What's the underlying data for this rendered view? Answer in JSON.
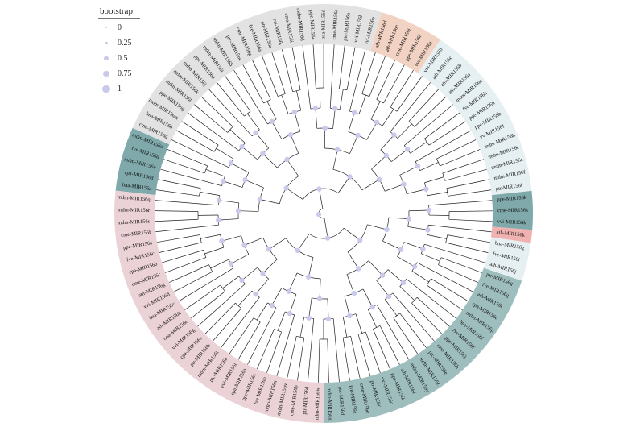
{
  "legend": {
    "title": "bootstrap",
    "items": [
      {
        "label": "0",
        "value": 0
      },
      {
        "label": "0.25",
        "value": 0.25
      },
      {
        "label": "0.5",
        "value": 0.5
      },
      {
        "label": "0.75",
        "value": 0.75
      },
      {
        "label": "1",
        "value": 1
      }
    ],
    "dot_color": "#c9c9ec"
  },
  "clade_colors": {
    "grey": "#e2e2e2",
    "orange": "#f1d2c3",
    "lightblue": "#e6eff1",
    "teal": "#7fa9ab",
    "red": "#f0b2b0",
    "darkteal": "#9ebdbd",
    "pink": "#ebd2d7"
  },
  "leaves": [
    {
      "label": "ptr-MIR156f",
      "clade": "lightblue"
    },
    {
      "label": "mdm-MIR156f",
      "clade": "lightblue"
    },
    {
      "label": "mdm-MIR156c",
      "clade": "lightblue"
    },
    {
      "label": "mdm-MIR156e",
      "clade": "lightblue"
    },
    {
      "label": "mdm-MIR156b",
      "clade": "lightblue"
    },
    {
      "label": "vv-MIR156f",
      "clade": "lightblue"
    },
    {
      "label": "ppe-MIR156b",
      "clade": "lightblue"
    },
    {
      "label": "ppe-MIR156h",
      "clade": "lightblue"
    },
    {
      "label": "fve-MIR156h",
      "clade": "lightblue"
    },
    {
      "label": "mdm-MIR156a",
      "clade": "lightblue"
    },
    {
      "label": "ath-MIR156a",
      "clade": "lightblue"
    },
    {
      "label": "ath-MIR156b",
      "clade": "lightblue"
    },
    {
      "label": "ath-MIR156c",
      "clade": "lightblue"
    },
    {
      "label": "vvi-MIR156b",
      "clade": "lightblue"
    },
    {
      "label": "vvi-MIR156a",
      "clade": "orange"
    },
    {
      "label": "ppe-MIR156f",
      "clade": "orange"
    },
    {
      "label": "cme-MIR156j",
      "clade": "orange"
    },
    {
      "label": "ath-MIR156e",
      "clade": "orange"
    },
    {
      "label": "ath-MIR156d",
      "clade": "orange"
    },
    {
      "label": "vvi-MIR156e",
      "clade": "grey"
    },
    {
      "label": "vvi-MIR156h",
      "clade": "grey"
    },
    {
      "label": "ptc-MIR156a",
      "clade": "grey"
    },
    {
      "label": "cme-MIR156a",
      "clade": "grey"
    },
    {
      "label": "bna-MIR156d",
      "clade": "grey"
    },
    {
      "label": "ppe-MIR156e",
      "clade": "grey"
    },
    {
      "label": "mdm-MIR156d",
      "clade": "grey"
    },
    {
      "label": "cme-MIR156i",
      "clade": "grey"
    },
    {
      "label": "vvi-MIR156j",
      "clade": "grey"
    },
    {
      "label": "ptr-MIR156e",
      "clade": "grey"
    },
    {
      "label": "fve-MIR156a",
      "clade": "grey"
    },
    {
      "label": "cme-MIR156g",
      "clade": "grey"
    },
    {
      "label": "ptc-MIR156c",
      "clade": "grey"
    },
    {
      "label": "mdm-MIR156h",
      "clade": "grey"
    },
    {
      "label": "mdm-MIR156i",
      "clade": "grey"
    },
    {
      "label": "ppe-MIR156d",
      "clade": "grey"
    },
    {
      "label": "mdm-MIR156j",
      "clade": "grey"
    },
    {
      "label": "mdm-MIR156k",
      "clade": "grey"
    },
    {
      "label": "mdm-MIR156l",
      "clade": "grey"
    },
    {
      "label": "ppe-MIR156g",
      "clade": "grey"
    },
    {
      "label": "mdm-MIR156m",
      "clade": "grey"
    },
    {
      "label": "bna-MIR156b",
      "clade": "grey"
    },
    {
      "label": "cme-MIR156d",
      "clade": "grey"
    },
    {
      "label": "mdm-MIR156o",
      "clade": "teal"
    },
    {
      "label": "fve-MIR156d",
      "clade": "teal"
    },
    {
      "label": "mdm-MIR156n",
      "clade": "teal"
    },
    {
      "label": "cpa-MIR156d",
      "clade": "teal"
    },
    {
      "label": "bna-MIR156a",
      "clade": "teal"
    },
    {
      "label": "mdm-MIR156q",
      "clade": "pink"
    },
    {
      "label": "mdm-MIR156r",
      "clade": "pink"
    },
    {
      "label": "mdm-MIR156s",
      "clade": "pink"
    },
    {
      "label": "cme-MIR156f",
      "clade": "pink"
    },
    {
      "label": "ppe-MIR156a",
      "clade": "pink"
    },
    {
      "label": "fve-MIR156c",
      "clade": "pink"
    },
    {
      "label": "cpa-MIR156b",
      "clade": "pink"
    },
    {
      "label": "cme-MIR156c",
      "clade": "pink"
    },
    {
      "label": "ath-MIR156g",
      "clade": "pink"
    },
    {
      "label": "vvi-MIR156d",
      "clade": "pink"
    },
    {
      "label": "bna-MIR156c",
      "clade": "pink"
    },
    {
      "label": "ath-MIR156h",
      "clade": "pink"
    },
    {
      "label": "bna-MIR156e",
      "clade": "pink"
    },
    {
      "label": "vvi-MIR156g",
      "clade": "pink"
    },
    {
      "label": "cpa-MIR156c",
      "clade": "pink"
    },
    {
      "label": "ptr-MIR156b",
      "clade": "pink"
    },
    {
      "label": "mdm-MIR156t",
      "clade": "pink"
    },
    {
      "label": "ptc-MIR156b",
      "clade": "pink"
    },
    {
      "label": "vvi-MIR156i",
      "clade": "pink"
    },
    {
      "label": "cpa-MIR156a",
      "clade": "pink"
    },
    {
      "label": "ppe-MIR156c",
      "clade": "pink"
    },
    {
      "label": "fve-MIR156b",
      "clade": "pink"
    },
    {
      "label": "mdm-MIR156u",
      "clade": "pink"
    },
    {
      "label": "mdm-MIR156v",
      "clade": "pink"
    },
    {
      "label": "cme-MIR156b",
      "clade": "pink"
    },
    {
      "label": "ptr-MIR156d",
      "clade": "pink"
    },
    {
      "label": "mdm-MIR156w",
      "clade": "pink"
    },
    {
      "label": "mdm-MIR156x",
      "clade": "darkteal"
    },
    {
      "label": "ptc-MIR156d",
      "clade": "darkteal"
    },
    {
      "label": "fve-MIR156e",
      "clade": "darkteal"
    },
    {
      "label": "cme-MIR156e",
      "clade": "darkteal"
    },
    {
      "label": "ptr-MIR156c",
      "clade": "darkteal"
    },
    {
      "label": "vvi-MIR156c",
      "clade": "darkteal"
    },
    {
      "label": "ppe-MIR156i",
      "clade": "darkteal"
    },
    {
      "label": "ath-MIR156f",
      "clade": "darkteal"
    },
    {
      "label": "mdm-MIR156y",
      "clade": "darkteal"
    },
    {
      "label": "mdm-MIR156z",
      "clade": "darkteal"
    },
    {
      "label": "ptc-MIR156e",
      "clade": "darkteal"
    },
    {
      "label": "cme-MIR156h",
      "clade": "darkteal"
    },
    {
      "label": "ppe-MIR156j",
      "clade": "darkteal"
    },
    {
      "label": "fve-MIR156f",
      "clade": "darkteal"
    },
    {
      "label": "bna-MIR156f",
      "clade": "darkteal"
    },
    {
      "label": "mdm-MIR156p",
      "clade": "darkteal"
    },
    {
      "label": "cpa-MIR156e",
      "clade": "darkteal"
    },
    {
      "label": "ath-MIR156i",
      "clade": "darkteal"
    },
    {
      "label": "fve-MIR156g",
      "clade": "darkteal"
    },
    {
      "label": "ptr-MIR156g",
      "clade": "darkteal"
    },
    {
      "label": "ath-MIR156j",
      "clade": "lightblue"
    },
    {
      "label": "fve-MIR156i",
      "clade": "lightblue"
    },
    {
      "label": "bna-MIR156g",
      "clade": "lightblue"
    },
    {
      "label": "ath-MIR156k",
      "clade": "red"
    },
    {
      "label": "vvi-MIR156k",
      "clade": "teal"
    },
    {
      "label": "cme-MIR156k",
      "clade": "teal"
    },
    {
      "label": "ppe-MIR156k",
      "clade": "teal"
    }
  ]
}
